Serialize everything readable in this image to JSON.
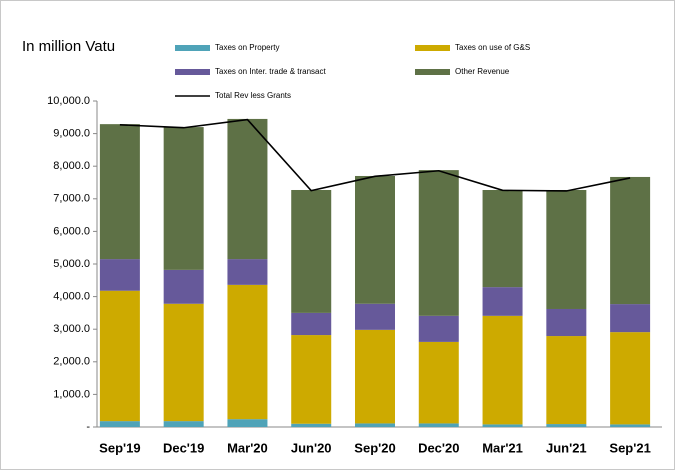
{
  "chart_data": {
    "type": "bar",
    "stacked": true,
    "title": "In million Vatu",
    "categories": [
      "Sep'19",
      "Dec'19",
      "Mar'20",
      "Jun'20",
      "Sep'20",
      "Dec'20",
      "Mar'21",
      "Jun'21",
      "Sep'21"
    ],
    "series": [
      {
        "name": "Taxes on Property",
        "color": "#4fa3b8",
        "values": [
          180,
          180,
          240,
          100,
          110,
          110,
          80,
          90,
          80
        ]
      },
      {
        "name": "Taxes on use of G&S",
        "color": "#cdaa00",
        "values": [
          4000,
          3600,
          4120,
          2720,
          2870,
          2500,
          3330,
          2700,
          2830
        ]
      },
      {
        "name": "Taxes on Inter. trade & transact",
        "color": "#66599a",
        "values": [
          970,
          1040,
          790,
          680,
          800,
          800,
          880,
          830,
          860
        ]
      },
      {
        "name": "Other Revenue",
        "color": "#5e7146",
        "values": [
          4140,
          4380,
          4300,
          3770,
          3920,
          4470,
          2980,
          3650,
          3900
        ]
      },
      {
        "name": "Total Rev less Grants",
        "type": "line",
        "color": "#000000",
        "values": [
          9270,
          9180,
          9430,
          7250,
          7690,
          7860,
          7260,
          7240,
          7640
        ]
      }
    ],
    "ylim": [
      0,
      10000
    ],
    "yticks": [
      {
        "value": 0,
        "label": "-"
      },
      {
        "value": 1000,
        "label": "1,000.0"
      },
      {
        "value": 2000,
        "label": "2,000.0"
      },
      {
        "value": 3000,
        "label": "3,000.0"
      },
      {
        "value": 4000,
        "label": "4,000.0"
      },
      {
        "value": 5000,
        "label": "5,000.0"
      },
      {
        "value": 6000,
        "label": "6,000.0"
      },
      {
        "value": 7000,
        "label": "7,000.0"
      },
      {
        "value": 8000,
        "label": "8,000.0"
      },
      {
        "value": 9000,
        "label": "9,000.0"
      },
      {
        "value": 10000,
        "label": "10,000.0"
      }
    ],
    "grid": false
  }
}
